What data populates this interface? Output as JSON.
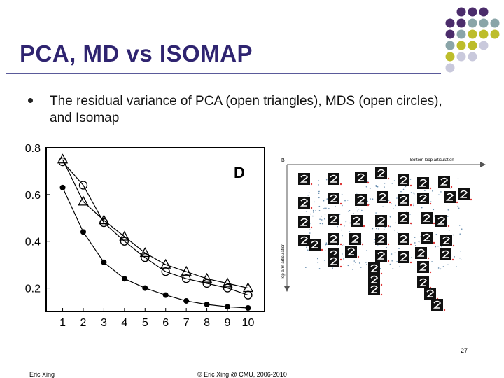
{
  "slide": {
    "title": "PCA, MD vs ISOMAP",
    "bullet": "The residual variance of PCA (open triangles), MDS (open circles), and Isomap",
    "slide_number": "27",
    "footer_left": "Eric Xing",
    "footer_center": "© Eric Xing @ CMU, 2006-2010"
  },
  "colors": {
    "title": "#2f2470",
    "dot_purple": "#4b2c6b",
    "dot_teal": "#8aa5a8",
    "dot_olive": "#bdbd2b",
    "dot_lavender": "#c9c9dc"
  },
  "chart_data": {
    "type": "line",
    "panel_label": "D",
    "x": [
      1,
      2,
      3,
      4,
      5,
      6,
      7,
      8,
      9,
      10
    ],
    "ylim": [
      0.1,
      0.8
    ],
    "yticks": [
      "0.2",
      "0.4",
      "0.6",
      "0.8"
    ],
    "series": [
      {
        "marker": "triangle",
        "values": [
          0.75,
          0.57,
          0.49,
          0.42,
          0.35,
          0.3,
          0.27,
          0.24,
          0.22,
          0.2
        ]
      },
      {
        "marker": "circle",
        "values": [
          0.74,
          0.64,
          0.48,
          0.4,
          0.33,
          0.27,
          0.24,
          0.22,
          0.2,
          0.17
        ]
      },
      {
        "marker": "filled-circle",
        "values": [
          0.63,
          0.44,
          0.31,
          0.24,
          0.2,
          0.17,
          0.145,
          0.13,
          0.12,
          0.115
        ]
      }
    ]
  },
  "embedding": {
    "top_axis_label": "Bottom loop articulation",
    "side_axis_label": "Top arm articulation",
    "corner_label": "B"
  }
}
